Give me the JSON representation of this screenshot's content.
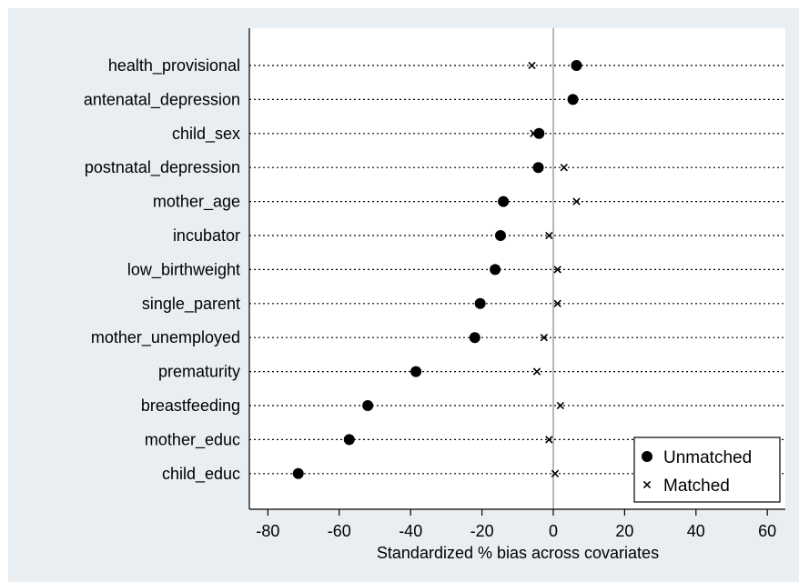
{
  "chart_data": {
    "type": "scatter",
    "xlabel": "Standardized % bias across covariates",
    "xlim": [
      -85,
      65
    ],
    "xticks": [
      -80,
      -60,
      -40,
      -20,
      0,
      20,
      40,
      60
    ],
    "categories": [
      "health_provisional",
      "antenatal_depression",
      "child_sex",
      "postnatal_depression",
      "mother_age",
      "incubator",
      "low_birthweight",
      "single_parent",
      "mother_unemployed",
      "prematurity",
      "breastfeeding",
      "mother_educ",
      "child_educ"
    ],
    "series": [
      {
        "name": "Unmatched",
        "marker": "circle",
        "values": [
          6.5,
          5.5,
          -4,
          -4.2,
          -14,
          -14.8,
          -16.3,
          -20.5,
          -22,
          -38.5,
          -52,
          -57.2,
          -71.5
        ]
      },
      {
        "name": "Matched",
        "marker": "x",
        "values": [
          -6,
          null,
          -5.5,
          3,
          6.5,
          -1.2,
          1.2,
          1.2,
          -2.6,
          -4.6,
          2,
          -1.2,
          0.5
        ]
      }
    ],
    "legend": {
      "position": "bottom-right"
    },
    "colors": {
      "background": "#e9eef2",
      "plot_bg": "#ffffff",
      "zero_line": "#a6a6a6",
      "marker": "#000000"
    }
  }
}
